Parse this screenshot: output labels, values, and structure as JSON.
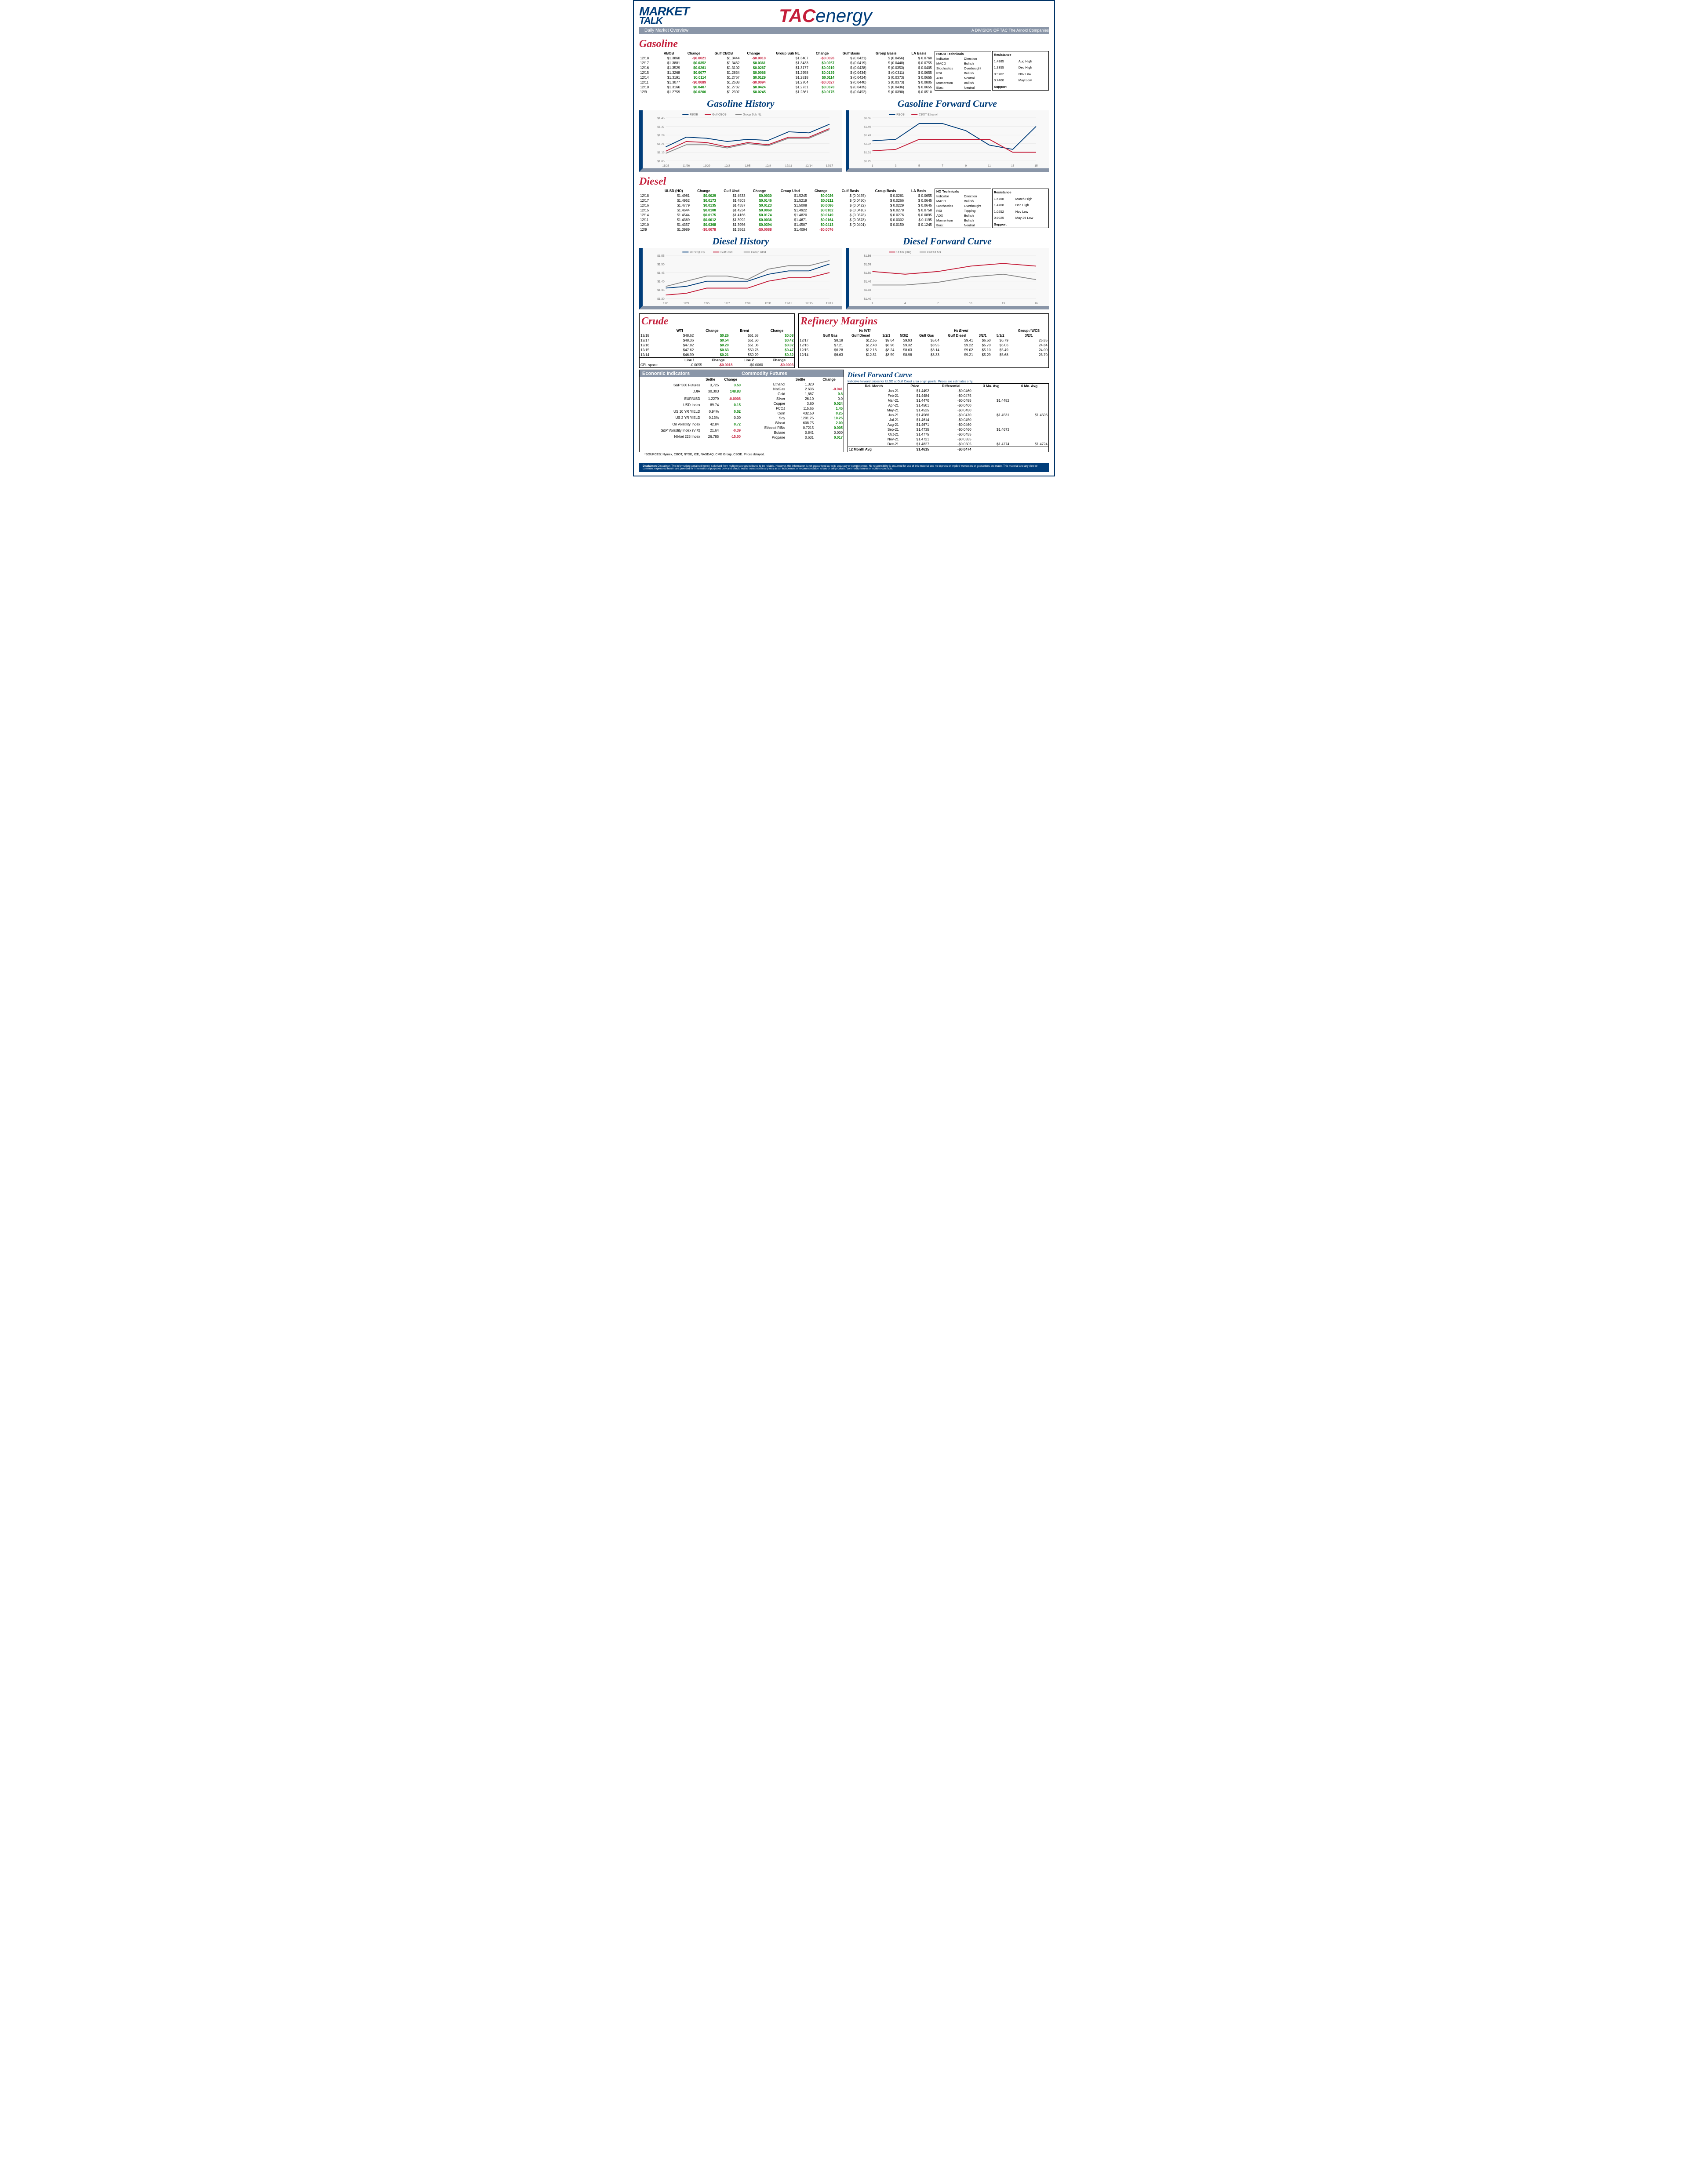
{
  "header": {
    "market": "MARKET",
    "talk": "TALK",
    "subtitle": "Daily Market Overview",
    "tac": "TAC",
    "energy": "energy",
    "division": "A DIVISION OF TAC The Arnold Companies"
  },
  "gasoline": {
    "title": "Gasoline",
    "cols": [
      "",
      "RBOB",
      "Change",
      "Gulf CBOB",
      "Change",
      "Group Sub NL",
      "Change",
      "Gulf Basis",
      "Group Basis",
      "LA Basis"
    ],
    "rows": [
      {
        "d": "12/18",
        "v": [
          "$1.3860",
          "-$0.0021",
          "$1.3444",
          "-$0.0018",
          "$1.3407",
          "-$0.0026",
          "$ (0.0421)",
          "$ (0.0456)",
          "$ 0.0760"
        ]
      },
      {
        "d": "12/17",
        "v": [
          "$1.3881",
          "$0.0352",
          "$1.3462",
          "$0.0361",
          "$1.3433",
          "$0.0257",
          "$ (0.0419)",
          "$ (0.0448)",
          "$ 0.0755"
        ]
      },
      {
        "d": "12/16",
        "v": [
          "$1.3529",
          "$0.0261",
          "$1.3102",
          "$0.0267",
          "$1.3177",
          "$0.0219",
          "$ (0.0428)",
          "$ (0.0353)",
          "$ 0.0405"
        ]
      },
      {
        "d": "12/15",
        "v": [
          "$1.3268",
          "$0.0077",
          "$1.2834",
          "$0.0068",
          "$1.2958",
          "$0.0139",
          "$ (0.0434)",
          "$ (0.0311)",
          "$ 0.0655"
        ]
      },
      {
        "d": "12/14",
        "v": [
          "$1.3191",
          "$0.0114",
          "$1.2767",
          "$0.0129",
          "$1.2818",
          "$0.0114",
          "$ (0.0424)",
          "$ (0.0373)",
          "$ 0.0655"
        ]
      },
      {
        "d": "12/11",
        "v": [
          "$1.3077",
          "-$0.0089",
          "$1.2638",
          "-$0.0094",
          "$1.2704",
          "-$0.0027",
          "$ (0.0440)",
          "$ (0.0373)",
          "$ 0.0805"
        ]
      },
      {
        "d": "12/10",
        "v": [
          "$1.3166",
          "$0.0407",
          "$1.2732",
          "$0.0424",
          "$1.2731",
          "$0.0370",
          "$ (0.0435)",
          "$ (0.0436)",
          "$ 0.0655"
        ]
      },
      {
        "d": "12/9",
        "v": [
          "$1.2759",
          "$0.0200",
          "$1.2307",
          "$0.0245",
          "$1.2361",
          "$0.0175",
          "$ (0.0452)",
          "$ (0.0398)",
          "$ 0.0510"
        ]
      }
    ],
    "tech_title": "RBOB Technicals",
    "tech_cols": [
      "Indicator",
      "Direction"
    ],
    "tech_rows": [
      [
        "MACD",
        "Bullish"
      ],
      [
        "Stochastics",
        "Overbought"
      ],
      [
        "RSI",
        "Bullish"
      ],
      [
        "ADX",
        "Neutral"
      ],
      [
        "Momentum",
        "Bullish"
      ],
      [
        "Bias:",
        "Neutral"
      ]
    ],
    "res_title": "Resistance",
    "res_rows": [
      [
        "1.4385",
        "Aug High"
      ],
      [
        "1.3355",
        "Dec High"
      ],
      [
        "0.9702",
        "Nov Low"
      ],
      [
        "0.7400",
        "May Low"
      ]
    ],
    "sup_title": "Support"
  },
  "gas_history": {
    "title": "Gasoline History",
    "series": [
      "RBOB",
      "Gulf CBOB",
      "Group Sub NL"
    ],
    "colors": [
      "#003d7a",
      "#c41e3a",
      "#888888"
    ],
    "x": [
      "11/23",
      "11/26",
      "11/29",
      "12/2",
      "12/5",
      "12/8",
      "12/11",
      "12/14",
      "12/17"
    ],
    "ylim": [
      1.05,
      1.45
    ],
    "data": [
      [
        1.18,
        1.27,
        1.26,
        1.23,
        1.25,
        1.24,
        1.32,
        1.31,
        1.39
      ],
      [
        1.14,
        1.23,
        1.22,
        1.18,
        1.22,
        1.2,
        1.27,
        1.27,
        1.35
      ],
      [
        1.12,
        1.2,
        1.2,
        1.17,
        1.21,
        1.19,
        1.26,
        1.26,
        1.34
      ]
    ]
  },
  "gas_forward": {
    "title": "Gasoline Forward Curve",
    "series": [
      "RBOB",
      "CBOT Ethanol"
    ],
    "colors": [
      "#003d7a",
      "#c41e3a"
    ],
    "x": [
      "1",
      "3",
      "5",
      "7",
      "9",
      "11",
      "13",
      "15"
    ],
    "ylim": [
      1.25,
      1.55
    ],
    "data": [
      [
        1.39,
        1.4,
        1.51,
        1.51,
        1.46,
        1.36,
        1.33,
        1.49
      ],
      [
        1.32,
        1.33,
        1.4,
        1.4,
        1.4,
        1.4,
        1.31,
        1.31
      ]
    ]
  },
  "diesel": {
    "title": "Diesel",
    "cols": [
      "",
      "ULSD (HO)",
      "Change",
      "Gulf Ulsd",
      "Change",
      "Group Ulsd",
      "Change",
      "Gulf Basis",
      "Group Basis",
      "LA Basis"
    ],
    "rows": [
      {
        "d": "12/18",
        "v": [
          "$1.4981",
          "$0.0029",
          "$1.4533",
          "$0.0030",
          "$1.5245",
          "$0.0026",
          "$ (0.0455)",
          "$ 0.0261",
          "$ 0.0655"
        ]
      },
      {
        "d": "12/17",
        "v": [
          "$1.4952",
          "$0.0173",
          "$1.4503",
          "$0.0146",
          "$1.5219",
          "$0.0211",
          "$ (0.0450)",
          "$ 0.0266",
          "$ 0.0645"
        ]
      },
      {
        "d": "12/16",
        "v": [
          "$1.4779",
          "$0.0135",
          "$1.4357",
          "$0.0123",
          "$1.5008",
          "$0.0086",
          "$ (0.0422)",
          "$ 0.0229",
          "$ 0.0645"
        ]
      },
      {
        "d": "12/15",
        "v": [
          "$1.4644",
          "$0.0100",
          "$1.4234",
          "$0.0069",
          "$1.4922",
          "$0.0102",
          "$ (0.0410)",
          "$ 0.0278",
          "$ 0.0758"
        ]
      },
      {
        "d": "12/14",
        "v": [
          "$1.4544",
          "$0.0175",
          "$1.4166",
          "$0.0174",
          "$1.4820",
          "$0.0149",
          "$ (0.0378)",
          "$ 0.0276",
          "$ 0.0895"
        ]
      },
      {
        "d": "12/11",
        "v": [
          "$1.4369",
          "$0.0012",
          "$1.3992",
          "$0.0036",
          "$1.4671",
          "$0.0164",
          "$ (0.0378)",
          "$ 0.0302",
          "$ 0.1195"
        ]
      },
      {
        "d": "12/10",
        "v": [
          "$1.4357",
          "$0.0368",
          "$1.3956",
          "$0.0394",
          "$1.4507",
          "$0.0413",
          "$ (0.0401)",
          "$ 0.0150",
          "$ 0.1245"
        ]
      },
      {
        "d": "12/9",
        "v": [
          "$1.3989",
          "-$0.0078",
          "$1.3562",
          "-$0.0088",
          "$1.4094",
          "-$0.0076",
          "",
          "",
          ""
        ]
      }
    ],
    "tech_title": "HO Technicals",
    "tech_rows": [
      [
        "MACD",
        "Bullish"
      ],
      [
        "Stochastics",
        "Overbought"
      ],
      [
        "RSI",
        "Topping"
      ],
      [
        "ADX",
        "Bullish"
      ],
      [
        "Momentum",
        "Bullish"
      ],
      [
        "Bias:",
        "Neutral"
      ]
    ],
    "res_rows": [
      [
        "1.5768",
        "March High"
      ],
      [
        "1.4708",
        "Dec High"
      ],
      [
        "1.0252",
        "Nov Low"
      ],
      [
        "0.9025",
        "May 29 Low"
      ]
    ]
  },
  "diesel_history": {
    "title": "Diesel History",
    "series": [
      "ULSD (HO)",
      "Gulf Ulsd",
      "Group Ulsd"
    ],
    "colors": [
      "#003d7a",
      "#c41e3a",
      "#888888"
    ],
    "x": [
      "12/1",
      "12/3",
      "12/5",
      "12/7",
      "12/9",
      "12/11",
      "12/13",
      "12/15",
      "12/17"
    ],
    "ylim": [
      1.3,
      1.55
    ],
    "data": [
      [
        1.36,
        1.37,
        1.4,
        1.4,
        1.4,
        1.44,
        1.46,
        1.46,
        1.5
      ],
      [
        1.32,
        1.33,
        1.36,
        1.36,
        1.36,
        1.4,
        1.42,
        1.42,
        1.45
      ],
      [
        1.37,
        1.4,
        1.43,
        1.43,
        1.41,
        1.47,
        1.49,
        1.49,
        1.52
      ]
    ]
  },
  "diesel_forward": {
    "title": "Diesel Forward Curve",
    "series": [
      "ULSD (HO)",
      "Gulf ULSD"
    ],
    "colors": [
      "#c41e3a",
      "#888888"
    ],
    "x": [
      "1",
      "4",
      "7",
      "10",
      "13",
      "16"
    ],
    "ylim": [
      1.4,
      1.56
    ],
    "data": [
      [
        1.5,
        1.49,
        1.5,
        1.52,
        1.53,
        1.52
      ],
      [
        1.45,
        1.45,
        1.46,
        1.48,
        1.49,
        1.47
      ]
    ]
  },
  "crude": {
    "title": "Crude",
    "cols": [
      "",
      "WTI",
      "Change",
      "Brent",
      "Change"
    ],
    "rows": [
      {
        "d": "12/18",
        "v": [
          "$48.62",
          "$0.26",
          "$51.58",
          "$0.08"
        ]
      },
      {
        "d": "12/17",
        "v": [
          "$48.36",
          "$0.54",
          "$51.50",
          "$0.42"
        ]
      },
      {
        "d": "12/16",
        "v": [
          "$47.82",
          "$0.20",
          "$51.08",
          "$0.32"
        ]
      },
      {
        "d": "12/15",
        "v": [
          "$47.62",
          "$0.63",
          "$50.76",
          "$0.47"
        ]
      },
      {
        "d": "12/14",
        "v": [
          "$46.99",
          "$0.21",
          "$50.29",
          "$0.32"
        ]
      }
    ],
    "cpl": {
      "label": "CPL space",
      "l1": "Line 1",
      "l1c": "Change",
      "l2": "Line 2",
      "l2c": "Change",
      "v": [
        "-0.0055",
        "-$0.0018",
        "-$0.0060",
        "-$0.0003"
      ]
    }
  },
  "margins": {
    "title": "Refinery Margins",
    "wti_label": "Vs WTI",
    "brent_label": "Vs Brent",
    "cols": [
      "Gulf Gas",
      "Gulf Diesel",
      "3/2/1",
      "5/3/2",
      "Gulf Gas",
      "Gulf Diesel",
      "3/2/1",
      "5/3/2",
      "3/2/1"
    ],
    "group_label": "Group / WCS",
    "rows": [
      [
        "12/17",
        "$8.18",
        "$12.55",
        "$9.64",
        "$9.93",
        "$5.04",
        "$9.41",
        "$6.50",
        "$6.79",
        "25.85"
      ],
      [
        "12/16",
        "$7.21",
        "$12.48",
        "$8.96",
        "$9.32",
        "$3.95",
        "$9.22",
        "$5.70",
        "$6.06",
        "24.84"
      ],
      [
        "12/15",
        "$6.28",
        "$12.16",
        "$8.24",
        "$8.63",
        "$3.14",
        "$9.02",
        "$5.10",
        "$5.49",
        "24.00"
      ],
      [
        "12/14",
        "$6.63",
        "$12.51",
        "$8.59",
        "$8.98",
        "$3.33",
        "$9.21",
        "$5.29",
        "$5.68",
        "23.70"
      ]
    ]
  },
  "econ": {
    "title1": "Economic Indicators",
    "title2": "Commodity Futures",
    "left_cols": [
      "",
      "Settle",
      "Change"
    ],
    "left_rows": [
      [
        "S&P 500 Futures",
        "3,725",
        "3.50"
      ],
      [
        "DJIA",
        "30,303",
        "148.83"
      ],
      [
        "",
        "",
        ""
      ],
      [
        "EUR/USD",
        "1.2279",
        "-0.0008"
      ],
      [
        "USD Index",
        "89.74",
        "0.15"
      ],
      [
        "US 10 YR YIELD",
        "0.94%",
        "0.02"
      ],
      [
        "US 2 YR YIELD",
        "0.13%",
        "0.00"
      ],
      [
        "Oil Volatility Index",
        "42.84",
        "0.72"
      ],
      [
        "S&P Volatility Index (VIX)",
        "21.64",
        "-0.39"
      ],
      [
        "Nikkei 225 Index",
        "26,785",
        "-15.00"
      ]
    ],
    "right_cols": [
      "",
      "Settle",
      "Change"
    ],
    "right_rows": [
      [
        "Ethanol",
        "1.320",
        ""
      ],
      [
        "NatGas",
        "2.636",
        "-0.041"
      ],
      [
        "Gold",
        "1,887",
        "0.8"
      ],
      [
        "Silver",
        "26.10",
        "0.0"
      ],
      [
        "Copper",
        "3.60",
        "0.024"
      ],
      [
        "FCOJ",
        "115.65",
        "1.45"
      ],
      [
        "Corn",
        "432.50",
        "0.25"
      ],
      [
        "Soy",
        "1201.25",
        "10.25"
      ],
      [
        "Wheat",
        "608.75",
        "2.00"
      ],
      [
        "Ethanol RINs",
        "0.7215",
        "0.005"
      ],
      [
        "Butane",
        "0.841",
        "0.000"
      ],
      [
        "Propane",
        "0.631",
        "0.017"
      ]
    ]
  },
  "diesel_fwd_curve": {
    "title": "Diesel Forward Curve",
    "subtitle": "Indicitive forward prices for ULSD at Gulf Coast area origin points. Prices are estimates only.",
    "cols": [
      "Del. Month",
      "Price",
      "Differential",
      "3 Mo. Avg",
      "6 Mo. Avg"
    ],
    "rows": [
      [
        "Jan-21",
        "$1.4492",
        "-$0.0460",
        "",
        ""
      ],
      [
        "Feb-21",
        "$1.4484",
        "-$0.0475",
        "",
        ""
      ],
      [
        "Mar-21",
        "$1.4470",
        "-$0.0485",
        "$1.4482",
        ""
      ],
      [
        "Apr-21",
        "$1.4501",
        "-$0.0460",
        "",
        ""
      ],
      [
        "May-21",
        "$1.4525",
        "-$0.0450",
        "",
        ""
      ],
      [
        "Jun-21",
        "$1.4566",
        "-$0.0470",
        "$1.4531",
        "$1.4506"
      ],
      [
        "Jul-21",
        "$1.4614",
        "-$0.0450",
        "",
        ""
      ],
      [
        "Aug-21",
        "$1.4671",
        "-$0.0460",
        "",
        ""
      ],
      [
        "Sep-21",
        "$1.4735",
        "-$0.0460",
        "$1.4673",
        ""
      ],
      [
        "Oct-21",
        "$1.4775",
        "-$0.0455",
        "",
        ""
      ],
      [
        "Nov-21",
        "$1.4721",
        "-$0.0555",
        "",
        ""
      ],
      [
        "Dec-21",
        "$1.4827",
        "-$0.0505",
        "$1.4774",
        "$1.4724"
      ]
    ],
    "avg_row": [
      "12 Month Avg",
      "$1.4615",
      "-$0.0474",
      "",
      ""
    ]
  },
  "sources": "*SOURCES: Nymex, CBOT, NYSE, ICE, NASDAQ, CME Group, CBOE.  Prices delayed.",
  "disclaimer": "Disclaimer: The information contained herein is derived from multiple sources believed to be reliable. However, this information is not guaranteed as to its accuracy or completeness. No responsibility is assumed for use of this material and no express or implied warranties or guarantees are made. This material and any view or comment expressed herein are provided for informational purposes only and should not be construed in any way as an inducement or recommendation to buy or sell products, commodity futures or options contracts."
}
